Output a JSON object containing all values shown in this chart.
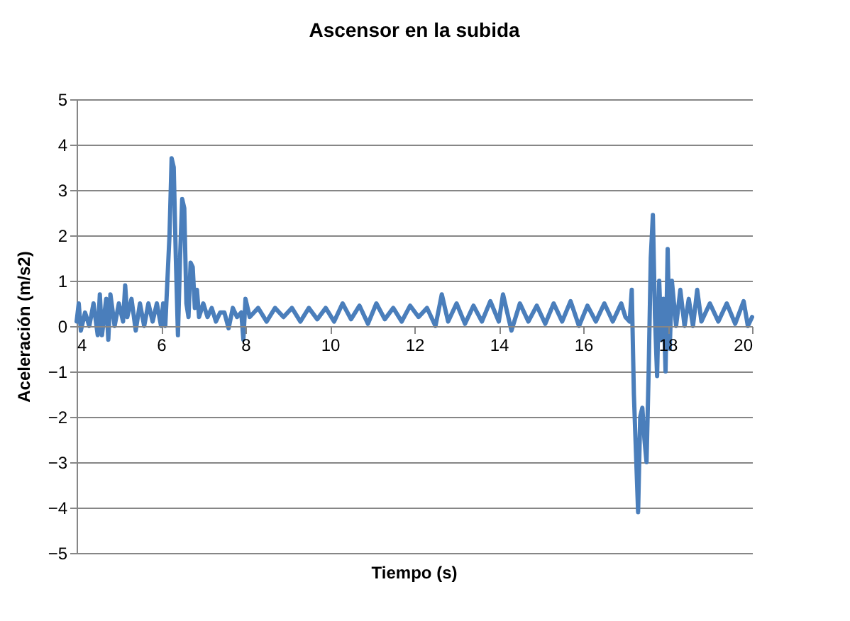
{
  "chart_data": {
    "type": "line",
    "title": "Ascensor en la subida",
    "xlabel": "Tiempo (s)",
    "ylabel": "Aceleración (m/s2)",
    "xlim": [
      4,
      20
    ],
    "xticks": [
      4,
      6,
      8,
      10,
      12,
      14,
      16,
      18,
      20
    ],
    "ylim": [
      -5,
      5
    ],
    "yticks": [
      -5,
      -4,
      -3,
      -2,
      -1,
      0,
      1,
      2,
      3,
      4,
      5
    ],
    "grid": "y",
    "x": [
      4.0,
      4.05,
      4.1,
      4.2,
      4.3,
      4.4,
      4.5,
      4.55,
      4.6,
      4.7,
      4.75,
      4.8,
      4.9,
      5.0,
      5.1,
      5.15,
      5.2,
      5.3,
      5.4,
      5.5,
      5.6,
      5.7,
      5.8,
      5.9,
      6.0,
      6.05,
      6.1,
      6.15,
      6.2,
      6.25,
      6.3,
      6.35,
      6.4,
      6.45,
      6.5,
      6.55,
      6.6,
      6.65,
      6.7,
      6.75,
      6.8,
      6.85,
      6.9,
      7.0,
      7.1,
      7.2,
      7.3,
      7.4,
      7.5,
      7.6,
      7.7,
      7.8,
      7.9,
      7.95,
      8.0,
      8.1,
      8.3,
      8.5,
      8.7,
      8.9,
      9.1,
      9.3,
      9.5,
      9.7,
      9.9,
      10.1,
      10.3,
      10.5,
      10.7,
      10.9,
      11.1,
      11.3,
      11.5,
      11.7,
      11.9,
      12.1,
      12.3,
      12.5,
      12.65,
      12.8,
      13.0,
      13.2,
      13.4,
      13.6,
      13.8,
      14.0,
      14.1,
      14.3,
      14.5,
      14.7,
      14.9,
      15.1,
      15.3,
      15.5,
      15.7,
      15.9,
      16.1,
      16.3,
      16.5,
      16.7,
      16.9,
      17.0,
      17.1,
      17.15,
      17.2,
      17.25,
      17.3,
      17.35,
      17.4,
      17.45,
      17.5,
      17.55,
      17.6,
      17.65,
      17.7,
      17.75,
      17.8,
      17.85,
      17.9,
      17.95,
      18.0,
      18.05,
      18.1,
      18.2,
      18.3,
      18.4,
      18.5,
      18.6,
      18.7,
      18.8,
      19.0,
      19.2,
      19.4,
      19.6,
      19.8,
      19.9,
      20.0
    ],
    "series": [
      {
        "color": "#4a7ebb",
        "values": [
          0.1,
          0.5,
          -0.1,
          0.3,
          0.0,
          0.5,
          -0.2,
          0.7,
          -0.2,
          0.6,
          -0.3,
          0.7,
          0.0,
          0.5,
          0.1,
          0.9,
          0.2,
          0.6,
          -0.1,
          0.5,
          0.0,
          0.5,
          0.1,
          0.5,
          0.0,
          0.5,
          0.0,
          1.0,
          2.0,
          3.7,
          3.5,
          1.5,
          -0.2,
          1.5,
          2.8,
          2.6,
          0.5,
          0.2,
          1.4,
          1.3,
          0.4,
          0.8,
          0.2,
          0.5,
          0.2,
          0.4,
          0.1,
          0.3,
          0.3,
          -0.05,
          0.4,
          0.2,
          0.3,
          -0.3,
          0.6,
          0.2,
          0.4,
          0.1,
          0.4,
          0.2,
          0.4,
          0.1,
          0.4,
          0.15,
          0.4,
          0.1,
          0.5,
          0.15,
          0.45,
          0.05,
          0.5,
          0.15,
          0.4,
          0.1,
          0.45,
          0.2,
          0.4,
          0.0,
          0.7,
          0.1,
          0.5,
          0.05,
          0.45,
          0.1,
          0.55,
          0.1,
          0.7,
          -0.1,
          0.5,
          0.1,
          0.45,
          0.05,
          0.5,
          0.1,
          0.55,
          0.0,
          0.45,
          0.1,
          0.5,
          0.1,
          0.5,
          0.2,
          0.1,
          0.8,
          -1.5,
          -2.8,
          -4.1,
          -2.0,
          -1.8,
          -2.5,
          -3.0,
          -1.0,
          1.5,
          2.45,
          0.2,
          -1.1,
          1.0,
          -0.3,
          0.6,
          -1.0,
          1.7,
          -0.5,
          1.0,
          0.0,
          0.8,
          0.0,
          0.6,
          0.0,
          0.8,
          0.1,
          0.5,
          0.1,
          0.5,
          0.05,
          0.55,
          0.0,
          0.2
        ]
      }
    ]
  }
}
